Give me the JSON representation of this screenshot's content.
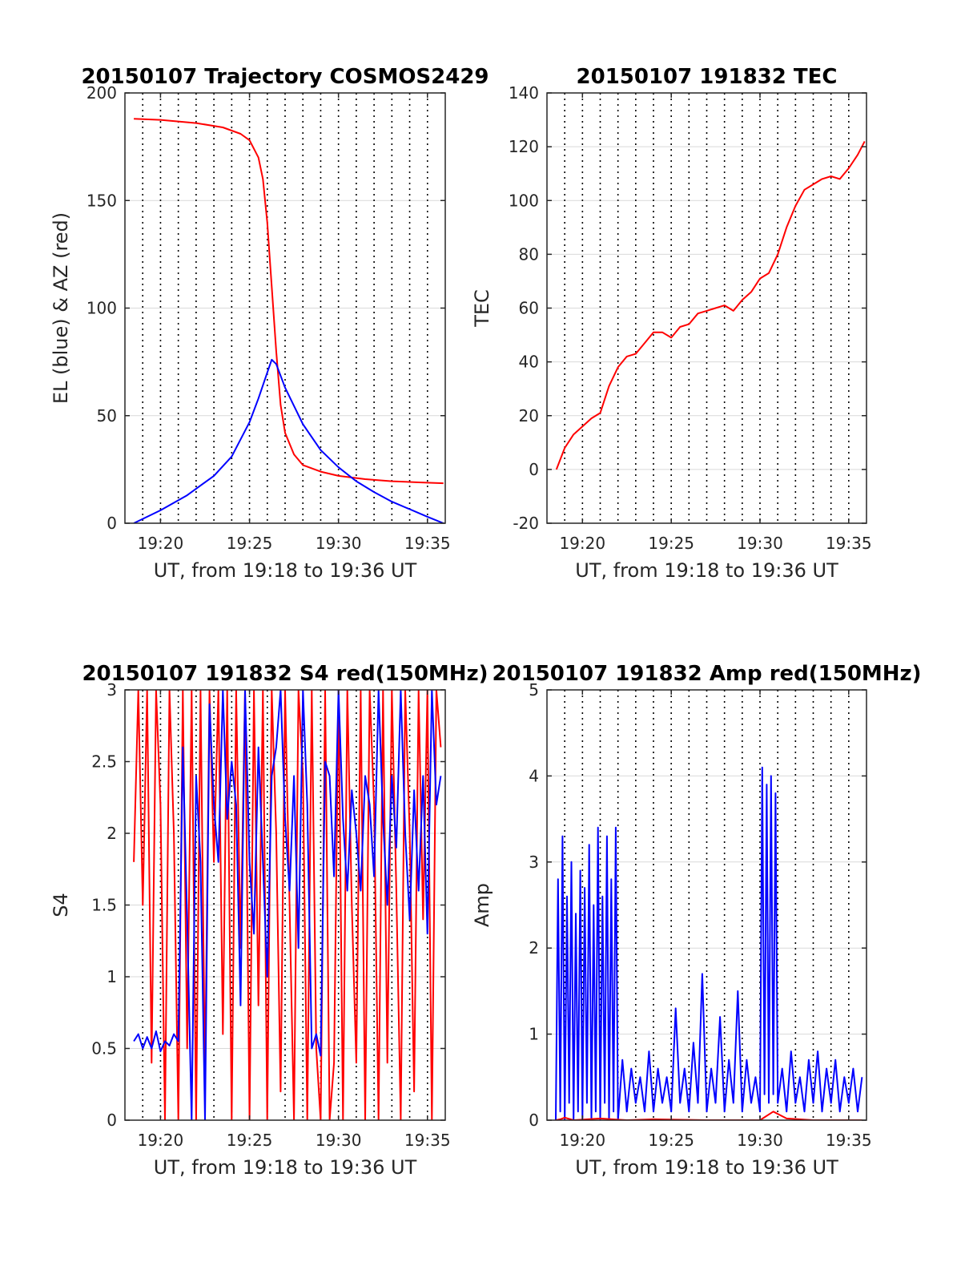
{
  "colors": {
    "red": "#ff0000",
    "blue": "#0000ff",
    "grid": "#d9d9d9",
    "axis": "#262626"
  },
  "chart_data": [
    {
      "id": "trajectory",
      "type": "line",
      "title": "20150107 Trajectory COSMOS2429",
      "xlabel": "UT, from 19:18 to 19:36 UT",
      "ylabel": "EL (blue) & AZ (red)",
      "xlim": [
        19.3,
        19.6
      ],
      "ylim": [
        0,
        200
      ],
      "xticks": [
        19.3333,
        19.4167,
        19.5,
        19.5833
      ],
      "xtick_labels": [
        "19:20",
        "19:25",
        "19:30",
        "19:35"
      ],
      "yticks": [
        0,
        50,
        100,
        150,
        200
      ],
      "ytick_labels": [
        "0",
        "50",
        "100",
        "150",
        "200"
      ],
      "grid": "on",
      "series": [
        {
          "color": "red",
          "x": [
            19.3083,
            19.3333,
            19.3667,
            19.3917,
            19.4083,
            19.4167,
            19.425,
            19.4292,
            19.4333,
            19.4375,
            19.4417,
            19.4458,
            19.45,
            19.4583,
            19.4667,
            19.4833,
            19.5,
            19.525,
            19.55,
            19.575,
            19.5983
          ],
          "y": [
            188,
            187.5,
            186,
            184,
            181,
            178,
            170,
            160,
            140,
            110,
            80,
            55,
            42,
            32,
            27,
            24,
            22,
            20.5,
            19.5,
            19,
            18.6
          ]
        },
        {
          "color": "blue",
          "x": [
            19.3083,
            19.3333,
            19.3583,
            19.3833,
            19.4,
            19.4167,
            19.425,
            19.4333,
            19.4375,
            19.4417,
            19.45,
            19.4667,
            19.4833,
            19.5,
            19.5167,
            19.5333,
            19.55,
            19.5667,
            19.5833,
            19.5983
          ],
          "y": [
            0,
            6,
            13,
            22,
            31,
            47,
            58,
            70,
            76,
            74,
            63,
            46,
            34,
            26,
            19.5,
            14.5,
            10,
            6.5,
            3,
            0
          ]
        }
      ]
    },
    {
      "id": "tec",
      "type": "line",
      "title": "20150107 191832 TEC",
      "xlabel": "UT, from 19:18 to 19:36 UT",
      "ylabel": "TEC",
      "xlim": [
        19.3,
        19.6
      ],
      "ylim": [
        -20,
        140
      ],
      "xticks": [
        19.3333,
        19.4167,
        19.5,
        19.5833
      ],
      "xtick_labels": [
        "19:20",
        "19:25",
        "19:30",
        "19:35"
      ],
      "yticks": [
        -20,
        0,
        20,
        40,
        60,
        80,
        100,
        120,
        140
      ],
      "ytick_labels": [
        "-20",
        "0",
        "20",
        "40",
        "60",
        "80",
        "100",
        "120",
        "140"
      ],
      "grid": "on",
      "series": [
        {
          "color": "red",
          "x": [
            19.3089,
            19.3167,
            19.325,
            19.3333,
            19.3417,
            19.35,
            19.3583,
            19.3667,
            19.375,
            19.3833,
            19.3917,
            19.4,
            19.4083,
            19.4167,
            19.425,
            19.4333,
            19.4417,
            19.45,
            19.4583,
            19.4667,
            19.475,
            19.4833,
            19.4917,
            19.5,
            19.5083,
            19.5167,
            19.525,
            19.5333,
            19.5417,
            19.55,
            19.5583,
            19.5667,
            19.575,
            19.5833,
            19.5917,
            19.5983
          ],
          "y": [
            0,
            8,
            13,
            16,
            19,
            21,
            31,
            38,
            42,
            43,
            47,
            51,
            51,
            49,
            53,
            54,
            58,
            59,
            60,
            61,
            59,
            63,
            66,
            71,
            73,
            80,
            90,
            98,
            104,
            106,
            108,
            109,
            108,
            112,
            117,
            122
          ]
        }
      ]
    },
    {
      "id": "s4",
      "type": "line",
      "title": "20150107 191832 S4 red(150MHz)",
      "xlabel": "UT, from 19:18 to 19:36 UT",
      "ylabel": "S4",
      "xlim": [
        19.3,
        19.6
      ],
      "ylim": [
        0,
        3
      ],
      "xticks": [
        19.3333,
        19.4167,
        19.5,
        19.5833
      ],
      "xtick_labels": [
        "19:20",
        "19:25",
        "19:30",
        "19:35"
      ],
      "yticks": [
        0,
        0.5,
        1,
        1.5,
        2,
        2.5,
        3
      ],
      "ytick_labels": [
        "0",
        "0.5",
        "1",
        "1.5",
        "2",
        "2.5",
        "3"
      ],
      "grid": "on",
      "series": [
        {
          "color": "red",
          "x": [
            19.3083,
            19.3125,
            19.3167,
            19.3208,
            19.325,
            19.3292,
            19.3333,
            19.3375,
            19.3417,
            19.3458,
            19.35,
            19.3542,
            19.3583,
            19.3625,
            19.3667,
            19.3708,
            19.375,
            19.3792,
            19.3833,
            19.3875,
            19.3917,
            19.3958,
            19.4,
            19.4042,
            19.4083,
            19.4125,
            19.4167,
            19.4208,
            19.425,
            19.4292,
            19.4333,
            19.4375,
            19.4417,
            19.4458,
            19.45,
            19.4542,
            19.4583,
            19.4625,
            19.4667,
            19.4708,
            19.475,
            19.4792,
            19.4833,
            19.4875,
            19.4917,
            19.4958,
            19.5,
            19.5042,
            19.5083,
            19.5125,
            19.5167,
            19.5208,
            19.525,
            19.5292,
            19.5333,
            19.5375,
            19.5417,
            19.5458,
            19.55,
            19.5542,
            19.5583,
            19.5625,
            19.5667,
            19.5708,
            19.575,
            19.5792,
            19.5833,
            19.5875,
            19.5917,
            19.5958
          ],
          "y": [
            1.8,
            3,
            1.5,
            3,
            0.4,
            3,
            2.2,
            0,
            3,
            2,
            0,
            3,
            0.5,
            3,
            0,
            3,
            0.3,
            3,
            1.8,
            3,
            0.6,
            3,
            0,
            3,
            1.2,
            3,
            0,
            3,
            0.8,
            3,
            0,
            3,
            2,
            0.2,
            3,
            1.5,
            0,
            3,
            2.4,
            0,
            3,
            0.5,
            0,
            3,
            0,
            0.4,
            3,
            0,
            3,
            1.5,
            0.4,
            3,
            0,
            3,
            2.2,
            0,
            3,
            0.4,
            3,
            1.6,
            0,
            3,
            2,
            0.2,
            3,
            1.4,
            3,
            0,
            3,
            2.6
          ]
        },
        {
          "color": "blue",
          "x": [
            19.3083,
            19.3125,
            19.3167,
            19.3208,
            19.325,
            19.3292,
            19.3333,
            19.3375,
            19.3417,
            19.3458,
            19.35,
            19.3542,
            19.3583,
            19.3625,
            19.3667,
            19.3708,
            19.375,
            19.3792,
            19.3833,
            19.3875,
            19.3917,
            19.3958,
            19.4,
            19.4042,
            19.4083,
            19.4125,
            19.4167,
            19.4208,
            19.425,
            19.4292,
            19.4333,
            19.4375,
            19.4417,
            19.4458,
            19.45,
            19.4542,
            19.4583,
            19.4625,
            19.4667,
            19.4708,
            19.475,
            19.4792,
            19.4833,
            19.4875,
            19.4917,
            19.4958,
            19.5,
            19.5042,
            19.5083,
            19.5125,
            19.5167,
            19.5208,
            19.525,
            19.5292,
            19.5333,
            19.5375,
            19.5417,
            19.5458,
            19.55,
            19.5542,
            19.5583,
            19.5625,
            19.5667,
            19.5708,
            19.575,
            19.5792,
            19.5833,
            19.5875,
            19.5917,
            19.5958
          ],
          "y": [
            0.55,
            0.6,
            0.5,
            0.58,
            0.5,
            0.62,
            0.48,
            0.55,
            0.52,
            0.6,
            0.55,
            2.6,
            1.4,
            0,
            2.4,
            1.8,
            0,
            2.9,
            2.2,
            1.8,
            3,
            2.1,
            2.5,
            2.2,
            0.8,
            3,
            1.8,
            1.3,
            2.6,
            1.8,
            1,
            2.4,
            2.6,
            3,
            2.1,
            1.6,
            2.4,
            1.2,
            3,
            2.2,
            0.5,
            0.6,
            0.45,
            2.5,
            2.4,
            1.7,
            3,
            2.1,
            1.6,
            2.3,
            2,
            1.6,
            2.4,
            2.2,
            1.7,
            3,
            2.1,
            1.5,
            2.4,
            1.9,
            3,
            2,
            1.4,
            2.3,
            1.6,
            2.4,
            1.3,
            3,
            2.2,
            2.4
          ]
        }
      ]
    },
    {
      "id": "amp",
      "type": "line",
      "title": "20150107 191832 Amp red(150MHz)",
      "xlabel": "UT, from 19:18 to 19:36 UT",
      "ylabel": "Amp",
      "xlim": [
        19.3,
        19.6
      ],
      "ylim": [
        0,
        5
      ],
      "xticks": [
        19.3333,
        19.4167,
        19.5,
        19.5833
      ],
      "xtick_labels": [
        "19:20",
        "19:25",
        "19:30",
        "19:35"
      ],
      "yticks": [
        0,
        1,
        2,
        3,
        4,
        5
      ],
      "ytick_labels": [
        "0",
        "1",
        "2",
        "3",
        "4",
        "5"
      ],
      "grid": "on",
      "series": [
        {
          "color": "blue",
          "x": [
            19.3083,
            19.3104,
            19.3125,
            19.3146,
            19.3167,
            19.3188,
            19.3208,
            19.3229,
            19.325,
            19.3271,
            19.3292,
            19.3313,
            19.3333,
            19.3354,
            19.3375,
            19.3396,
            19.3417,
            19.3438,
            19.3458,
            19.3479,
            19.35,
            19.3521,
            19.3542,
            19.3563,
            19.3583,
            19.3604,
            19.3625,
            19.3646,
            19.3667,
            19.3708,
            19.375,
            19.3792,
            19.3833,
            19.3875,
            19.3917,
            19.3958,
            19.4,
            19.4042,
            19.4083,
            19.4125,
            19.4167,
            19.4208,
            19.425,
            19.4292,
            19.4333,
            19.4375,
            19.4417,
            19.4458,
            19.45,
            19.4542,
            19.4583,
            19.4625,
            19.4667,
            19.4708,
            19.475,
            19.4792,
            19.4833,
            19.4875,
            19.4917,
            19.4958,
            19.5,
            19.5021,
            19.5042,
            19.5063,
            19.5083,
            19.5104,
            19.5125,
            19.5146,
            19.5167,
            19.5208,
            19.525,
            19.5292,
            19.5333,
            19.5375,
            19.5417,
            19.5458,
            19.55,
            19.5542,
            19.5583,
            19.5625,
            19.5667,
            19.5708,
            19.575,
            19.5792,
            19.5833,
            19.5875,
            19.5917,
            19.5958
          ],
          "y": [
            0,
            2.8,
            0.1,
            3.3,
            0,
            2.6,
            0.2,
            3.0,
            0,
            2.4,
            0.1,
            2.9,
            0,
            2.7,
            0.2,
            3.2,
            0,
            2.5,
            0.1,
            3.4,
            0,
            2.6,
            0.2,
            3.3,
            0,
            2.8,
            0.1,
            3.4,
            0,
            0.7,
            0.1,
            0.6,
            0.2,
            0.5,
            0.1,
            0.8,
            0.1,
            0.6,
            0.2,
            0.5,
            0.1,
            1.3,
            0.2,
            0.6,
            0.1,
            0.9,
            0.2,
            1.7,
            0.1,
            0.6,
            0.2,
            1.2,
            0.1,
            0.7,
            0.2,
            1.5,
            0.1,
            0.7,
            0.2,
            0.5,
            0.1,
            4.1,
            0.3,
            3.9,
            0.2,
            4.0,
            0.3,
            3.8,
            0.2,
            0.6,
            0.1,
            0.8,
            0.2,
            0.5,
            0.1,
            0.7,
            0.2,
            0.8,
            0.1,
            0.6,
            0.2,
            0.7,
            0.1,
            0.5,
            0.2,
            0.6,
            0.1,
            0.5
          ]
        },
        {
          "color": "red",
          "x": [
            19.3083,
            19.3125,
            19.3167,
            19.325,
            19.35,
            19.375,
            19.4,
            19.45,
            19.5,
            19.5125,
            19.525,
            19.55,
            19.5958
          ],
          "y": [
            0,
            0.01,
            0.03,
            0,
            0.02,
            0,
            0.01,
            0,
            0,
            0.1,
            0.02,
            0,
            0
          ]
        }
      ]
    }
  ]
}
